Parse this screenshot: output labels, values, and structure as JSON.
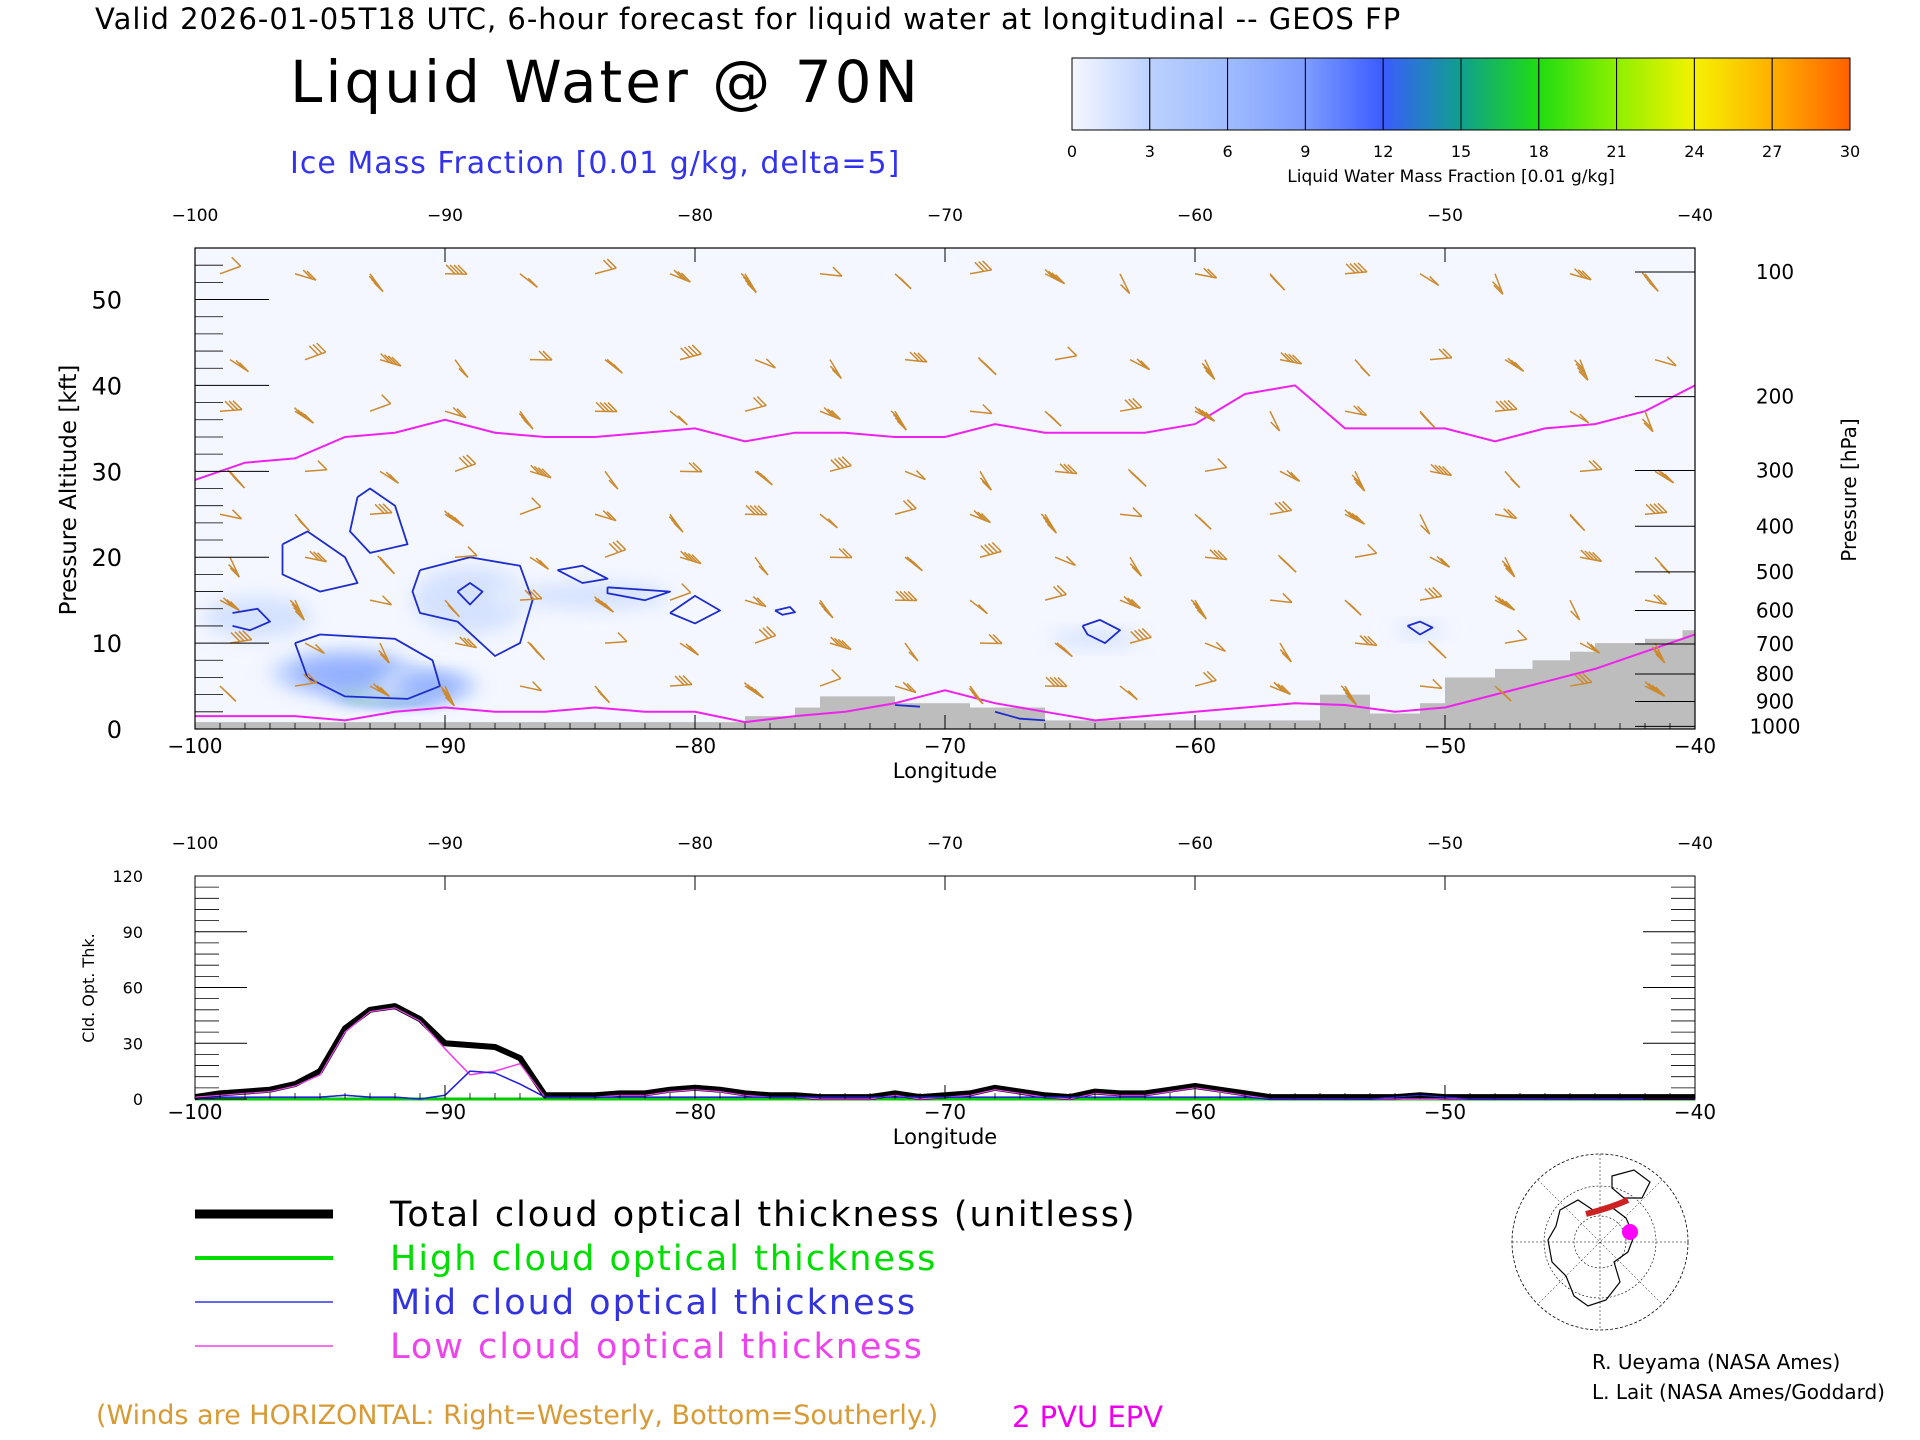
{
  "header": {
    "line": "Valid 2026-01-05T18 UTC, 6-hour forecast for liquid water at longitudinal -- GEOS FP",
    "title": "Liquid Water @ 70N",
    "ice_subtitle": "Ice Mass Fraction [0.01 g/kg, delta=5]"
  },
  "colorbar": {
    "ticks": [
      "0",
      "3",
      "6",
      "9",
      "12",
      "15",
      "18",
      "21",
      "24",
      "27",
      "30"
    ],
    "label": "Liquid Water Mass Fraction [0.01 g/kg]",
    "colors": [
      "#f4f7ff",
      "#bcd1ff",
      "#9fbcff",
      "#7d9cff",
      "#3a5cff",
      "#0fa08d",
      "#20dc12",
      "#8df000",
      "#f5f200",
      "#ffb000",
      "#ff6000",
      "#ff1500"
    ]
  },
  "chart_data": [
    {
      "type": "heatmap",
      "title": "Liquid Water @ 70N",
      "xlabel": "Longitude",
      "ylabel": "Pressure Altitude [kft]",
      "ylabel_right": "Pressure [hPa]",
      "xlim": [
        -100,
        -40
      ],
      "ylim": [
        0,
        56
      ],
      "x_ticks": [
        -100,
        -90,
        -80,
        -70,
        -60,
        -50,
        -40
      ],
      "y_ticks": [
        0,
        10,
        20,
        30,
        40,
        50
      ],
      "pressure_ticks": [
        {
          "hPa": 100,
          "kft": 53.2
        },
        {
          "hPa": 200,
          "kft": 38.7
        },
        {
          "hPa": 300,
          "kft": 30.1
        },
        {
          "hPa": 400,
          "kft": 23.6
        },
        {
          "hPa": 500,
          "kft": 18.3
        },
        {
          "hPa": 600,
          "kft": 13.8
        },
        {
          "hPa": 700,
          "kft": 9.9
        },
        {
          "hPa": 800,
          "kft": 6.4
        },
        {
          "hPa": 900,
          "kft": 3.2
        },
        {
          "hPa": 1000,
          "kft": 0.3
        }
      ],
      "liquid_water_blobs": [
        {
          "x": -92.5,
          "y": 5.0,
          "sx": 2.0,
          "sy": 1.5,
          "value": 22
        },
        {
          "x": -91.5,
          "y": 4.5,
          "sx": 1.4,
          "sy": 1.2,
          "value": 18
        },
        {
          "x": -94.0,
          "y": 6.5,
          "sx": 2.6,
          "sy": 2.3,
          "value": 10
        },
        {
          "x": -90.5,
          "y": 5.0,
          "sx": 1.6,
          "sy": 1.5,
          "value": 12
        },
        {
          "x": -97.5,
          "y": 13.0,
          "sx": 2.2,
          "sy": 2.5,
          "value": 3
        },
        {
          "x": -89.0,
          "y": 15.0,
          "sx": 2.3,
          "sy": 4.0,
          "value": 4
        },
        {
          "x": -84.0,
          "y": 15.5,
          "sx": 3.0,
          "sy": 1.6,
          "value": 2
        },
        {
          "x": -64.0,
          "y": 10.5,
          "sx": 1.8,
          "sy": 1.0,
          "value": 2
        },
        {
          "x": -51.0,
          "y": 11.5,
          "sx": 1.0,
          "sy": 0.8,
          "value": 2
        }
      ],
      "ice_contours": [
        [
          [
            -98.5,
            13.5
          ],
          [
            -97.5,
            14.0
          ],
          [
            -97.0,
            12.5
          ],
          [
            -97.8,
            11.5
          ],
          [
            -98.5,
            12.0
          ]
        ],
        [
          [
            -96.5,
            21.5
          ],
          [
            -95.5,
            23.0
          ],
          [
            -94.0,
            20.0
          ],
          [
            -93.5,
            17.0
          ],
          [
            -95.0,
            16.0
          ],
          [
            -96.5,
            18.0
          ],
          [
            -96.5,
            21.5
          ]
        ],
        [
          [
            -93.5,
            27.0
          ],
          [
            -93.0,
            28.0
          ],
          [
            -92.0,
            26.0
          ],
          [
            -91.5,
            21.5
          ],
          [
            -93.0,
            20.5
          ],
          [
            -93.8,
            23.0
          ],
          [
            -93.5,
            27.0
          ]
        ],
        [
          [
            -96.0,
            10.0
          ],
          [
            -95.0,
            11.0
          ],
          [
            -92.0,
            10.5
          ],
          [
            -90.5,
            8.0
          ],
          [
            -90.2,
            5.0
          ],
          [
            -91.5,
            3.5
          ],
          [
            -94.0,
            3.8
          ],
          [
            -95.5,
            6.0
          ],
          [
            -96.0,
            10.0
          ]
        ],
        [
          [
            -91.0,
            18.5
          ],
          [
            -89.0,
            20.0
          ],
          [
            -87.0,
            19.0
          ],
          [
            -86.5,
            15.0
          ],
          [
            -87.0,
            10.0
          ],
          [
            -88.0,
            8.5
          ],
          [
            -89.5,
            12.5
          ],
          [
            -91.0,
            13.5
          ],
          [
            -91.3,
            16.0
          ],
          [
            -91.0,
            18.5
          ]
        ],
        [
          [
            -89.5,
            16.0
          ],
          [
            -89.0,
            17.0
          ],
          [
            -88.5,
            16.0
          ],
          [
            -89.0,
            14.5
          ],
          [
            -89.5,
            16.0
          ]
        ],
        [
          [
            -85.5,
            18.5
          ],
          [
            -84.5,
            19.0
          ],
          [
            -83.5,
            17.5
          ],
          [
            -84.5,
            17.0
          ],
          [
            -85.5,
            18.5
          ]
        ],
        [
          [
            -83.5,
            16.5
          ],
          [
            -81.0,
            16.0
          ],
          [
            -82.0,
            15.0
          ],
          [
            -83.5,
            15.8
          ],
          [
            -83.5,
            16.5
          ]
        ],
        [
          [
            -81.0,
            13.5
          ],
          [
            -80.0,
            15.5
          ],
          [
            -79.0,
            13.8
          ],
          [
            -80.0,
            12.3
          ],
          [
            -81.0,
            13.5
          ]
        ],
        [
          [
            -76.8,
            13.8
          ],
          [
            -76.2,
            14.2
          ],
          [
            -76.0,
            13.6
          ],
          [
            -76.5,
            13.3
          ],
          [
            -76.8,
            13.8
          ]
        ],
        [
          [
            -64.5,
            12.0
          ],
          [
            -63.8,
            12.7
          ],
          [
            -63.0,
            11.5
          ],
          [
            -63.6,
            10.0
          ],
          [
            -64.3,
            11.0
          ],
          [
            -64.5,
            12.0
          ]
        ],
        [
          [
            -51.5,
            12.0
          ],
          [
            -51.0,
            12.5
          ],
          [
            -50.5,
            11.8
          ],
          [
            -51.0,
            11.0
          ],
          [
            -51.5,
            12.0
          ]
        ],
        [
          [
            -72.0,
            2.8
          ],
          [
            -71.0,
            2.6
          ]
        ],
        [
          [
            -68.0,
            2.0
          ],
          [
            -67.0,
            1.2
          ],
          [
            -66.0,
            1.0
          ]
        ]
      ],
      "epv_2pvu_line": {
        "x": [
          -100,
          -98,
          -96,
          -94,
          -92,
          -90,
          -88,
          -86,
          -84,
          -82,
          -80,
          -78,
          -76,
          -74,
          -72,
          -70,
          -68,
          -66,
          -64,
          -62,
          -60,
          -58,
          -56,
          -54,
          -52,
          -50,
          -48,
          -46,
          -44,
          -42,
          -40
        ],
        "y": [
          29.0,
          31.0,
          31.5,
          34.0,
          34.5,
          36.0,
          34.5,
          34.0,
          34.0,
          34.5,
          35.0,
          33.5,
          34.5,
          34.5,
          34.0,
          34.0,
          35.5,
          34.5,
          34.5,
          34.5,
          35.5,
          39.0,
          40.0,
          35.0,
          35.0,
          35.0,
          33.5,
          35.0,
          35.5,
          37.0,
          40.0
        ]
      },
      "epv_low_line": {
        "x": [
          -100,
          -98,
          -96,
          -94,
          -92,
          -90,
          -88,
          -86,
          -84,
          -82,
          -80,
          -78,
          -76,
          -74,
          -72,
          -70,
          -68,
          -66,
          -64,
          -62,
          -60,
          -58,
          -56,
          -54,
          -52,
          -50,
          -48,
          -46,
          -44,
          -42,
          -40
        ],
        "y": [
          1.5,
          1.5,
          1.5,
          1.0,
          2.0,
          2.5,
          2.0,
          2.0,
          2.5,
          2.0,
          2.0,
          0.8,
          1.5,
          2.0,
          3.0,
          4.5,
          3.0,
          2.0,
          1.0,
          1.5,
          2.0,
          2.5,
          3.0,
          2.8,
          2.0,
          2.5,
          4.0,
          5.5,
          7.0,
          9.0,
          11.0
        ]
      },
      "topography": [
        {
          "x0": -100,
          "x1": -78,
          "kft": 0.8
        },
        {
          "x0": -78,
          "x1": -76,
          "kft": 1.5
        },
        {
          "x0": -76,
          "x1": -75,
          "kft": 2.5
        },
        {
          "x0": -75,
          "x1": -72,
          "kft": 3.8
        },
        {
          "x0": -72,
          "x1": -69,
          "kft": 3.0
        },
        {
          "x0": -69,
          "x1": -66,
          "kft": 2.5
        },
        {
          "x0": -66,
          "x1": -55,
          "kft": 1.0
        },
        {
          "x0": -55,
          "x1": -53,
          "kft": 4.0
        },
        {
          "x0": -53,
          "x1": -51,
          "kft": 1.8
        },
        {
          "x0": -51,
          "x1": -50,
          "kft": 3.0
        },
        {
          "x0": -50,
          "x1": -48,
          "kft": 6.0
        },
        {
          "x0": -48,
          "x1": -46.5,
          "kft": 7.0
        },
        {
          "x0": -46.5,
          "x1": -45,
          "kft": 8.0
        },
        {
          "x0": -45,
          "x1": -44,
          "kft": 9.0
        },
        {
          "x0": -44,
          "x1": -42,
          "kft": 10.0
        },
        {
          "x0": -42,
          "x1": -40.5,
          "kft": 10.5
        },
        {
          "x0": -40.5,
          "x1": -40,
          "kft": 11.5
        }
      ],
      "wind_barbs": {
        "note": "longitude, kft, u (westerly) m/s, v (southerly) m/s",
        "longitudes": [
          -99,
          -96,
          -93,
          -90,
          -87,
          -84,
          -81,
          -78,
          -75,
          -72,
          -69,
          -66,
          -63,
          -60,
          -57,
          -54,
          -51,
          -48,
          -45,
          -42
        ],
        "levels_kft": [
          53,
          43,
          37,
          30,
          25,
          20,
          15,
          10,
          5
        ]
      }
    },
    {
      "type": "line",
      "xlabel": "Longitude",
      "ylabel": "Cld. Opt. Thk.",
      "xlim": [
        -100,
        -40
      ],
      "ylim": [
        0,
        120
      ],
      "x_ticks": [
        -100,
        -90,
        -80,
        -70,
        -60,
        -50,
        -40
      ],
      "y_ticks": [
        0,
        30,
        60,
        90,
        120
      ],
      "x": [
        -100,
        -99,
        -98,
        -97,
        -96,
        -95,
        -94,
        -93,
        -92,
        -91,
        -90,
        -89,
        -88,
        -87,
        -86,
        -85,
        -84,
        -83,
        -82,
        -81,
        -80,
        -79,
        -78,
        -77,
        -76,
        -75,
        -74,
        -73,
        -72,
        -71,
        -70,
        -69,
        -68,
        -67,
        -66,
        -65,
        -64,
        -63,
        -62,
        -61,
        -60,
        -59,
        -58,
        -57,
        -56,
        -55,
        -54,
        -53,
        -52,
        -51,
        -50,
        -49,
        -48,
        -47,
        -46,
        -45,
        -44,
        -43,
        -42,
        -41,
        -40
      ],
      "series": [
        {
          "name": "Total cloud optical thickness (unitless)",
          "color": "#000000",
          "width": 6,
          "values": [
            1,
            3,
            4,
            5,
            8,
            15,
            38,
            48,
            50,
            43,
            30,
            29,
            28,
            22,
            2,
            2,
            2,
            3,
            3,
            5,
            6,
            5,
            3,
            2,
            2,
            1,
            1,
            1,
            3,
            1,
            2,
            3,
            6,
            4,
            2,
            1,
            4,
            3,
            3,
            5,
            7,
            5,
            3,
            1,
            1,
            1,
            1,
            1,
            1,
            2,
            1,
            1,
            1,
            1,
            1,
            1,
            1,
            1,
            1,
            1,
            1
          ]
        },
        {
          "name": "High cloud optical thickness",
          "color": "#00cc00",
          "width": 3,
          "values": [
            0,
            0,
            0,
            0,
            0,
            0,
            0,
            0,
            0,
            0,
            0,
            0,
            0,
            0,
            0,
            0,
            0,
            0,
            0,
            0,
            0,
            0,
            0,
            0,
            0,
            0,
            0,
            0,
            0,
            0,
            0,
            0,
            0,
            0,
            0,
            0,
            0,
            0,
            0,
            0,
            0,
            0,
            0,
            0,
            0,
            0,
            0,
            0,
            0,
            0,
            0,
            0,
            0,
            0,
            0,
            0,
            0,
            0,
            0,
            0,
            0
          ]
        },
        {
          "name": "Mid cloud optical thickness",
          "color": "#2222dd",
          "width": 1.5,
          "values": [
            0,
            1,
            1,
            1,
            1,
            1,
            2,
            1,
            1,
            0,
            2,
            15,
            14,
            8,
            1,
            1,
            1,
            1,
            1,
            1,
            1,
            1,
            1,
            1,
            1,
            1,
            1,
            1,
            1,
            1,
            1,
            1,
            1,
            1,
            1,
            1,
            1,
            1,
            1,
            1,
            1,
            1,
            1,
            0,
            0,
            0,
            0,
            0,
            1,
            2,
            1,
            0,
            0,
            0,
            0,
            0,
            0,
            0,
            0,
            0,
            0
          ]
        },
        {
          "name": "Low cloud optical thickness",
          "color": "#ee44ee",
          "width": 1.5,
          "values": [
            1,
            2,
            3,
            4,
            7,
            13,
            36,
            47,
            49,
            42,
            27,
            13,
            15,
            19,
            1,
            1,
            1,
            2,
            2,
            4,
            5,
            4,
            2,
            1,
            1,
            0,
            0,
            0,
            2,
            0,
            1,
            2,
            5,
            3,
            1,
            0,
            3,
            2,
            2,
            4,
            6,
            4,
            2,
            0,
            0,
            0,
            0,
            0,
            0,
            0,
            0,
            0,
            0,
            0,
            0,
            0,
            0,
            0,
            0,
            0,
            0
          ]
        }
      ]
    }
  ],
  "legend": {
    "items": [
      {
        "label": "Total cloud optical thickness (unitless)",
        "color": "#000000"
      },
      {
        "label": "High cloud optical thickness",
        "color": "#00dd00"
      },
      {
        "label": "Mid cloud optical thickness",
        "color": "#3333dd"
      },
      {
        "label": "Low cloud optical thickness",
        "color": "#ee44ee"
      }
    ]
  },
  "credits": {
    "line1": "R. Ueyama (NASA Ames)",
    "line2": "L. Lait (NASA Ames/Goddard)"
  },
  "footer": {
    "winds_note": "(Winds are HORIZONTAL: Right=Westerly, Bottom=Southerly.)",
    "epv_label": "2 PVU EPV"
  }
}
